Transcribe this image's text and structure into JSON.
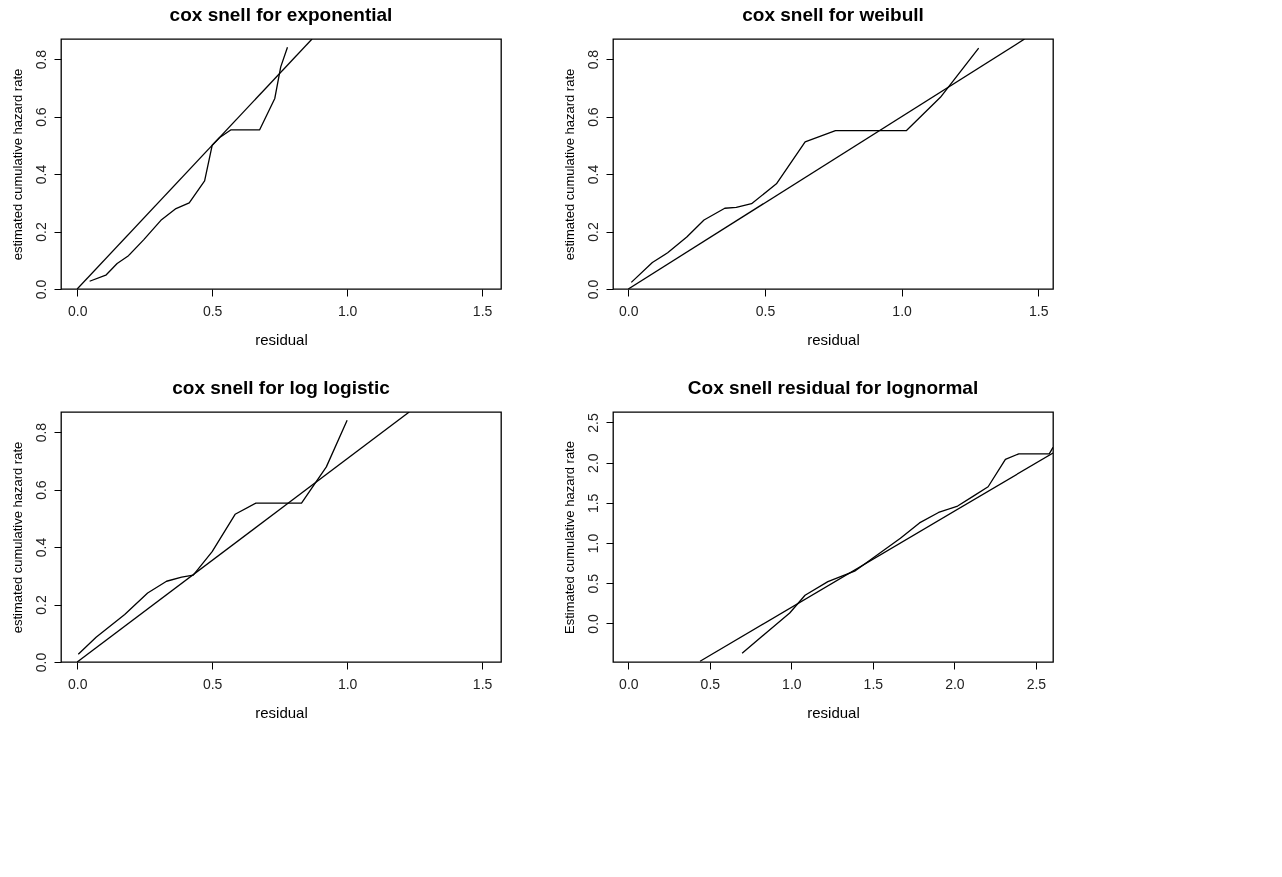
{
  "chart_data": [
    {
      "type": "line",
      "title": "cox snell for exponential",
      "xlabel": "residual",
      "ylabel": "estimated cumulative hazard rate",
      "xlim": [
        -0.06,
        1.57
      ],
      "ylim": [
        0,
        0.87
      ],
      "xticks": [
        {
          "value": 0,
          "label": "0.0"
        },
        {
          "value": 0.5,
          "label": "0.5"
        },
        {
          "value": 1,
          "label": "1.0"
        },
        {
          "value": 1.5,
          "label": "1.5"
        }
      ],
      "yticks": [
        {
          "value": 0,
          "label": "0.0"
        },
        {
          "value": 0.2,
          "label": "0.2"
        },
        {
          "value": 0.4,
          "label": "0.4"
        },
        {
          "value": 0.6,
          "label": "0.6"
        },
        {
          "value": 0.8,
          "label": "0.8"
        }
      ],
      "grid": false,
      "marker": "none",
      "line_style": "solid",
      "series": [
        {
          "color": "#000000",
          "x": [
            0.046,
            0.106,
            0.148,
            0.19,
            0.246,
            0.31,
            0.366,
            0.415,
            0.472,
            0.5,
            0.528,
            0.57,
            0.676,
            0.732,
            0.754,
            0.779
          ],
          "values": [
            0.027,
            0.048,
            0.089,
            0.116,
            0.171,
            0.239,
            0.28,
            0.3,
            0.376,
            0.5,
            0.527,
            0.554,
            0.554,
            0.663,
            0.773,
            0.841
          ]
        },
        {
          "color": "#000000",
          "x": [
            0,
            0.87
          ],
          "values": [
            0,
            0.87
          ]
        }
      ]
    },
    {
      "type": "line",
      "title": "cox snell for weibull",
      "xlabel": "residual",
      "ylabel": "estimated cumulative hazard rate",
      "xlim": [
        -0.056,
        1.554
      ],
      "ylim": [
        0,
        0.87
      ],
      "xticks": [
        {
          "value": 0,
          "label": "0.0"
        },
        {
          "value": 0.5,
          "label": "0.5"
        },
        {
          "value": 1,
          "label": "1.0"
        },
        {
          "value": 1.5,
          "label": "1.5"
        }
      ],
      "yticks": [
        {
          "value": 0,
          "label": "0.0"
        },
        {
          "value": 0.2,
          "label": "0.2"
        },
        {
          "value": 0.4,
          "label": "0.4"
        },
        {
          "value": 0.6,
          "label": "0.6"
        },
        {
          "value": 0.8,
          "label": "0.8"
        }
      ],
      "grid": false,
      "marker": "none",
      "line_style": "solid",
      "series": [
        {
          "color": "#000000",
          "x": [
            0.011,
            0.088,
            0.144,
            0.214,
            0.277,
            0.353,
            0.395,
            0.451,
            0.542,
            0.647,
            0.758,
            1.017,
            1.142,
            1.282
          ],
          "values": [
            0.023,
            0.092,
            0.126,
            0.181,
            0.24,
            0.281,
            0.284,
            0.297,
            0.366,
            0.512,
            0.551,
            0.551,
            0.667,
            0.838
          ]
        },
        {
          "color": "#000000",
          "x": [
            0,
            1.45
          ],
          "values": [
            0,
            0.87
          ]
        }
      ]
    },
    {
      "type": "line",
      "title": "cox snell for log logistic",
      "xlabel": "residual",
      "ylabel": "estimated cumulative hazard rate",
      "xlim": [
        -0.06,
        1.57
      ],
      "ylim": [
        0,
        0.87
      ],
      "xticks": [
        {
          "value": 0,
          "label": "0.0"
        },
        {
          "value": 0.5,
          "label": "0.5"
        },
        {
          "value": 1,
          "label": "1.0"
        },
        {
          "value": 1.5,
          "label": "1.5"
        }
      ],
      "yticks": [
        {
          "value": 0,
          "label": "0.0"
        },
        {
          "value": 0.2,
          "label": "0.2"
        },
        {
          "value": 0.4,
          "label": "0.4"
        },
        {
          "value": 0.6,
          "label": "0.6"
        },
        {
          "value": 0.8,
          "label": "0.8"
        }
      ],
      "grid": false,
      "marker": "none",
      "line_style": "solid",
      "series": [
        {
          "color": "#000000",
          "x": [
            0.004,
            0.07,
            0.176,
            0.261,
            0.331,
            0.387,
            0.43,
            0.5,
            0.585,
            0.662,
            0.831,
            0.923,
            1.0
          ],
          "values": [
            0.027,
            0.086,
            0.165,
            0.24,
            0.281,
            0.295,
            0.302,
            0.384,
            0.514,
            0.553,
            0.553,
            0.679,
            0.841
          ]
        },
        {
          "color": "#000000",
          "x": [
            0,
            1.23
          ],
          "values": [
            0,
            0.87
          ]
        }
      ]
    },
    {
      "type": "line",
      "title": "Cox snell residual for lognormal",
      "xlabel": "residual",
      "ylabel": "Estimated cumulative hazard rate",
      "xlim": [
        -0.094,
        2.605
      ],
      "ylim": [
        -0.48,
        2.63
      ],
      "xticks": [
        {
          "value": 0,
          "label": "0.0"
        },
        {
          "value": 0.5,
          "label": "0.5"
        },
        {
          "value": 1,
          "label": "1.0"
        },
        {
          "value": 1.5,
          "label": "1.5"
        },
        {
          "value": 2,
          "label": "2.0"
        },
        {
          "value": 2.5,
          "label": "2.5"
        }
      ],
      "yticks": [
        {
          "value": 0,
          "label": "0.0"
        },
        {
          "value": 0.5,
          "label": "0.5"
        },
        {
          "value": 1,
          "label": "1.0"
        },
        {
          "value": 1.5,
          "label": "1.5"
        },
        {
          "value": 2,
          "label": "2.0"
        },
        {
          "value": 2.5,
          "label": "2.5"
        }
      ],
      "grid": false,
      "marker": "none",
      "line_style": "solid",
      "series": [
        {
          "color": "#000000",
          "x": [
            0.698,
            0.85,
            0.99,
            1.084,
            1.224,
            1.388,
            1.505,
            1.669,
            1.786,
            1.903,
            2.02,
            2.114,
            2.207,
            2.313,
            2.395,
            2.582,
            2.605
          ],
          "values": [
            -0.37,
            -0.11,
            0.13,
            0.35,
            0.52,
            0.65,
            0.82,
            1.06,
            1.25,
            1.38,
            1.46,
            1.58,
            1.7,
            2.04,
            2.11,
            2.11,
            2.19
          ]
        },
        {
          "color": "#000000",
          "x": [
            0.44,
            2.605
          ],
          "values": [
            -0.47,
            2.12
          ]
        }
      ]
    }
  ]
}
